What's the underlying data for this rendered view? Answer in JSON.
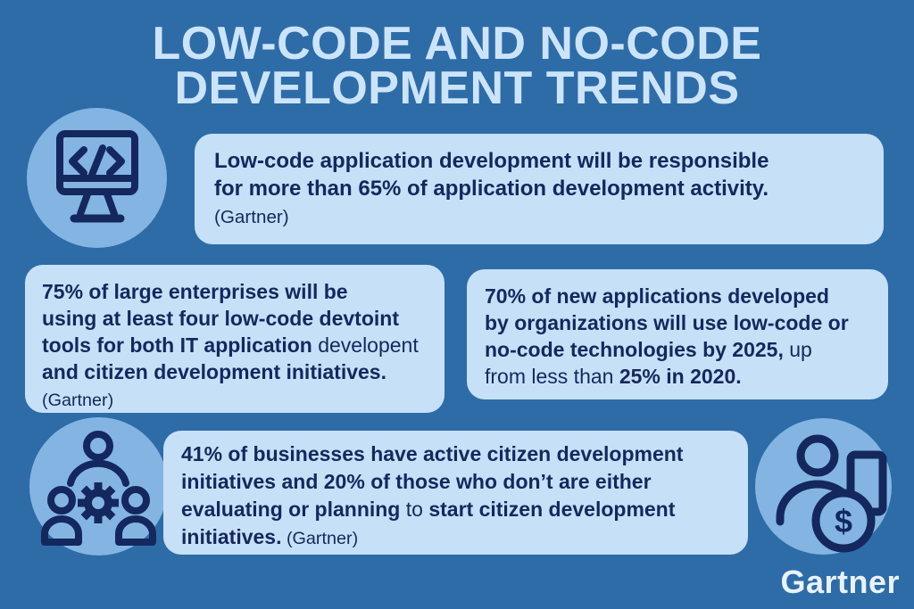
{
  "page": {
    "title_line1": "LOW-CODE AND NO-CODE",
    "title_line2": "DEVELOPMENT TRENDS",
    "brand": "Gartner"
  },
  "colors": {
    "background": "#2e6ca8",
    "card": "#c6e0f8",
    "circle": "#84b5e2",
    "navy": "#14285e",
    "title": "#cce4fa",
    "brand-text": "#e9f2fb"
  },
  "icons": {
    "top_left": "code-monitor-icon",
    "bottom_left": "team-gear-icon",
    "bottom_right": "person-money-icon",
    "coin_symbol": "$"
  },
  "cards": {
    "top": {
      "lines": [
        [
          {
            "t": "Low-code application development will be responsible",
            "b": true
          }
        ],
        [
          {
            "t": "for more than 65% of application development activity.",
            "b": true
          }
        ],
        [
          {
            "t": "(Gartner)",
            "b": false,
            "s": true
          }
        ]
      ]
    },
    "left": {
      "lines": [
        [
          {
            "t": "75% of large enterprises will be",
            "b": true
          }
        ],
        [
          {
            "t": "using at least four low-code devtoint",
            "b": true
          }
        ],
        [
          {
            "t": "tools for both IT application",
            "b": true
          },
          {
            "t": " developent",
            "b": false
          }
        ],
        [
          {
            "t": "and citizen development initiatives.",
            "b": true
          }
        ],
        [
          {
            "t": "(Gartner)",
            "b": false,
            "s": true
          }
        ]
      ]
    },
    "right": {
      "lines": [
        [
          {
            "t": "70% of new applications developed",
            "b": true
          }
        ],
        [
          {
            "t": "by organizations will use low-code or",
            "b": true
          }
        ],
        [
          {
            "t": "no-code technologies by 2025,",
            "b": true
          },
          {
            "t": " up",
            "b": false
          }
        ],
        [
          {
            "t": "from less than",
            "b": false
          },
          {
            "t": " 25% in 2020.",
            "b": true
          }
        ]
      ]
    },
    "bottom": {
      "lines": [
        [
          {
            "t": "41% of businesses have active citizen development",
            "b": true
          }
        ],
        [
          {
            "t": "initiatives and 20% of those who don’t are either",
            "b": true
          }
        ],
        [
          {
            "t": "evaluating or planning",
            "b": true
          },
          {
            "t": " to ",
            "b": false
          },
          {
            "t": "start citizen development",
            "b": true
          }
        ],
        [
          {
            "t": "initiatives.",
            "b": true
          },
          {
            "t": " (Gartner)",
            "b": false,
            "s": true
          }
        ]
      ]
    }
  }
}
